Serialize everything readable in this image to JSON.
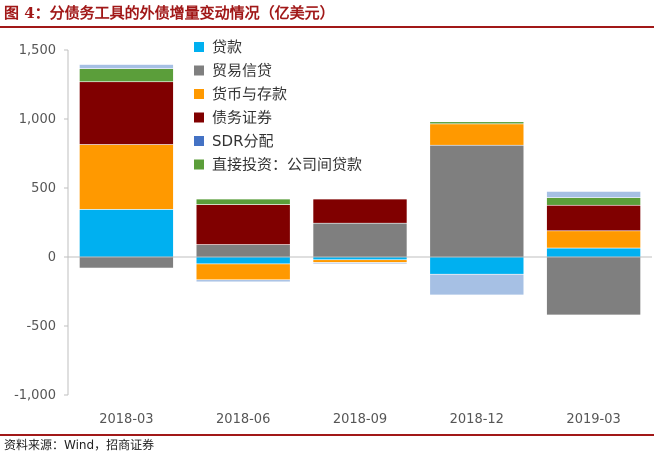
{
  "header": {
    "title": "图 4：分债务工具的外债增量变动情况（亿美元）"
  },
  "footer": {
    "source": "资料来源：Wind，招商证券"
  },
  "chart_data": {
    "type": "bar",
    "stacked": true,
    "categories": [
      "2018-03",
      "2018-06",
      "2018-09",
      "2018-12",
      "2019-03"
    ],
    "ylim": [
      -1000,
      1500
    ],
    "yticks": [
      1500,
      1000,
      500,
      0,
      -500,
      -1000
    ],
    "ytick_labels": [
      "1,500",
      "1,000",
      "500",
      "0",
      "-500",
      "-1,000"
    ],
    "grid": false,
    "legend_position": "top-center",
    "series": [
      {
        "name": "贷款",
        "color": "#00b0f0",
        "values": [
          345,
          -50,
          -20,
          -125,
          65
        ]
      },
      {
        "name": "贸易信贷",
        "color": "#7f7f7f",
        "values": [
          -80,
          90,
          245,
          810,
          -420
        ]
      },
      {
        "name": "货币与存款",
        "color": "#ff9900",
        "values": [
          470,
          -115,
          -20,
          155,
          125
        ]
      },
      {
        "name": "债务证券",
        "color": "#800000",
        "values": [
          455,
          290,
          175,
          0,
          185
        ]
      },
      {
        "name": "SDR分配",
        "color": "#4472c4",
        "values": [
          0,
          0,
          0,
          0,
          0
        ]
      },
      {
        "name": "直接投资：公司间贷款",
        "color": "#5b9e3a",
        "values": [
          95,
          40,
          0,
          15,
          55
        ]
      },
      {
        "name": "",
        "color": "#a6c0e4",
        "values": [
          30,
          -15,
          -10,
          -150,
          45
        ]
      }
    ]
  }
}
